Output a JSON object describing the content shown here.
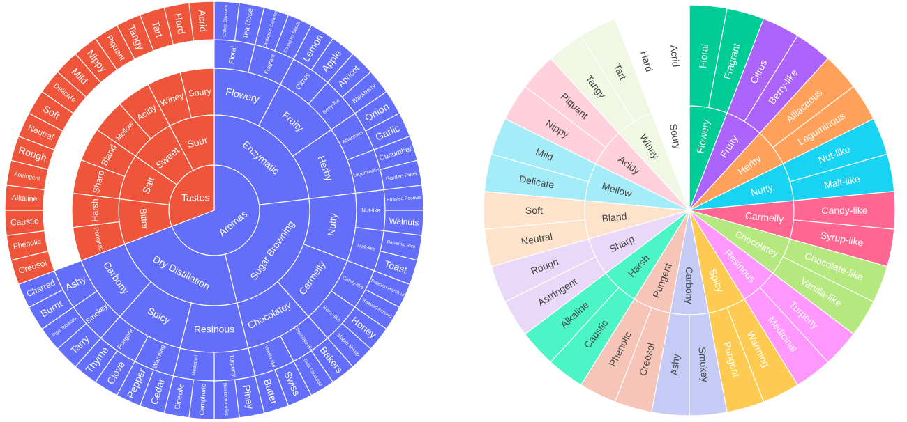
{
  "chart_data": [
    {
      "type": "sunburst",
      "colorway": [
        "#636efa",
        "#ef553b"
      ],
      "tree": [
        {
          "label": "Aromas",
          "children": [
            {
              "label": "Enzymatic",
              "children": [
                {
                  "label": "Flowery",
                  "children": [
                    {
                      "label": "Floral",
                      "leaves": [
                        "Coffee Blossom",
                        "Tea Rose"
                      ]
                    },
                    {
                      "label": "Fragrant",
                      "leaves": [
                        "Cardamon Caraway",
                        "Coriander Seeds"
                      ]
                    }
                  ]
                },
                {
                  "label": "Fruity",
                  "children": [
                    {
                      "label": "Citrus",
                      "leaves": [
                        "Lemon",
                        "Apple"
                      ]
                    },
                    {
                      "label": "Berry-like",
                      "leaves": [
                        "Apricot",
                        "Blackberry"
                      ]
                    }
                  ]
                },
                {
                  "label": "Herby",
                  "children": [
                    {
                      "label": "Alliaceous",
                      "leaves": [
                        "Onion",
                        "Garlic"
                      ]
                    },
                    {
                      "label": "Leguminous",
                      "leaves": [
                        "Cucumber",
                        "Garden Peas"
                      ]
                    }
                  ]
                }
              ]
            },
            {
              "label": "Sugar Browning",
              "children": [
                {
                  "label": "Nutty",
                  "children": [
                    {
                      "label": "Nut-like",
                      "leaves": [
                        "Roasted Peanuts",
                        "Walnuts"
                      ]
                    },
                    {
                      "label": "Malt-like",
                      "leaves": [
                        "Balsamic Rice",
                        "Toast"
                      ]
                    }
                  ]
                },
                {
                  "label": "Carmelly",
                  "children": [
                    {
                      "label": "Candy-like",
                      "leaves": [
                        "Roasted Hazelnut",
                        "Roasted Almond"
                      ]
                    },
                    {
                      "label": "Syrup-like",
                      "leaves": [
                        "Honey",
                        "Maple Syrup"
                      ]
                    }
                  ]
                },
                {
                  "label": "Chocolatey",
                  "children": [
                    {
                      "label": "Chocolate-like",
                      "leaves": [
                        "Bakers",
                        "Dark Chocolate"
                      ]
                    },
                    {
                      "label": "Vanilla-like",
                      "leaves": [
                        "Swiss",
                        "Butter"
                      ]
                    }
                  ]
                }
              ]
            },
            {
              "label": "Dry Distillation",
              "children": [
                {
                  "label": "Resinous",
                  "children": [
                    {
                      "label": "Turpeny",
                      "leaves": [
                        "Piney",
                        "Blackcurrant-like"
                      ]
                    },
                    {
                      "label": "Medicinal",
                      "leaves": [
                        "Camphoric",
                        "Cineolic"
                      ]
                    }
                  ]
                },
                {
                  "label": "Spicy",
                  "children": [
                    {
                      "label": "Warming",
                      "leaves": [
                        "Cedar",
                        "Pepper"
                      ]
                    },
                    {
                      "label": "Pungent",
                      "leaves": [
                        "Clove",
                        "Thyme"
                      ]
                    }
                  ]
                },
                {
                  "label": "Carbony",
                  "children": [
                    {
                      "label": "Smokey",
                      "leaves": [
                        "Tarry",
                        "Pipe Tobacco"
                      ]
                    },
                    {
                      "label": "Ashy",
                      "leaves": [
                        "Burnt",
                        "Charred"
                      ]
                    }
                  ]
                }
              ]
            }
          ]
        },
        {
          "label": "Tastes",
          "children": [
            {
              "label": "Bitter",
              "children": [
                {
                  "label": "Pungent",
                  "leaves": [
                    "Creosol",
                    "Phenolic"
                  ]
                },
                {
                  "label": "Harsh",
                  "leaves": [
                    "Caustic",
                    "Alkaline"
                  ]
                }
              ]
            },
            {
              "label": "Salt",
              "children": [
                {
                  "label": "Sharp",
                  "leaves": [
                    "Astringent",
                    "Rough"
                  ]
                },
                {
                  "label": "Bland",
                  "leaves": [
                    "Neutral",
                    "Soft"
                  ]
                }
              ]
            },
            {
              "label": "Sweet",
              "children": [
                {
                  "label": "Mellow",
                  "leaves": [
                    "Delicate",
                    "Mild"
                  ]
                },
                {
                  "label": "Acidy",
                  "leaves": [
                    "Nippy",
                    "Piquant"
                  ]
                }
              ]
            },
            {
              "label": "Sour",
              "children": [
                {
                  "label": "Winey",
                  "leaves": [
                    "Tangy",
                    "Tart"
                  ]
                },
                {
                  "label": "Soury",
                  "leaves": [
                    "Hard",
                    "Acrid"
                  ]
                }
              ]
            }
          ]
        }
      ]
    },
    {
      "type": "sunburst",
      "tree": [
        {
          "label": "Flowery",
          "color": "#00cc96",
          "children": [
            "Floral",
            "Fragrant"
          ]
        },
        {
          "label": "Fruity",
          "color": "#ab63fa",
          "children": [
            "Citrus",
            "Berry-like"
          ]
        },
        {
          "label": "Herby",
          "color": "#ffa15a",
          "children": [
            "Alliaceous",
            "Leguminous"
          ]
        },
        {
          "label": "Nutty",
          "color": "#19d3f3",
          "children": [
            "Nut-like",
            "Malt-like"
          ]
        },
        {
          "label": "Carmelly",
          "color": "#ff6692",
          "children": [
            "Candy-like",
            "Syrup-like"
          ]
        },
        {
          "label": "Chocolatey",
          "color": "#b6e880",
          "children": [
            "Chocolate-like",
            "Vanilla-like"
          ]
        },
        {
          "label": "Resinous",
          "color": "#ff97ff",
          "children": [
            "Turpeny",
            "Medicinal"
          ]
        },
        {
          "label": "Spicy",
          "color": "#fecb52",
          "children": [
            "Warming",
            "Pungent"
          ]
        },
        {
          "label": "Carbony",
          "color": "#c6cbf6",
          "children": [
            "Smokey",
            "Ashy"
          ]
        },
        {
          "label": "Pungent",
          "color": "#f7c5b8",
          "children": [
            "Creosol",
            "Phenolic"
          ]
        },
        {
          "label": "Harsh",
          "color": "#4cf5c6",
          "children": [
            "Caustic",
            "Alkaline"
          ]
        },
        {
          "label": "Sharp",
          "color": "#ead8f8",
          "children": [
            "Astringent",
            "Rough"
          ]
        },
        {
          "label": "Bland",
          "color": "#fde3cc",
          "children": [
            "Neutral",
            "Soft"
          ]
        },
        {
          "label": "Mellow",
          "color": "#a5ecf9",
          "children": [
            "Delicate",
            "Mild"
          ]
        },
        {
          "label": "Acidy",
          "color": "#ffd1dc",
          "children": [
            "Nippy",
            "Piquant"
          ]
        },
        {
          "label": "Winey",
          "color": "#f0f8e4",
          "children": [
            "Tangy",
            "Tart"
          ]
        },
        {
          "label": "Soury",
          "color": "#ffffff",
          "children": [
            "Hard",
            "Acrid"
          ]
        }
      ]
    }
  ]
}
